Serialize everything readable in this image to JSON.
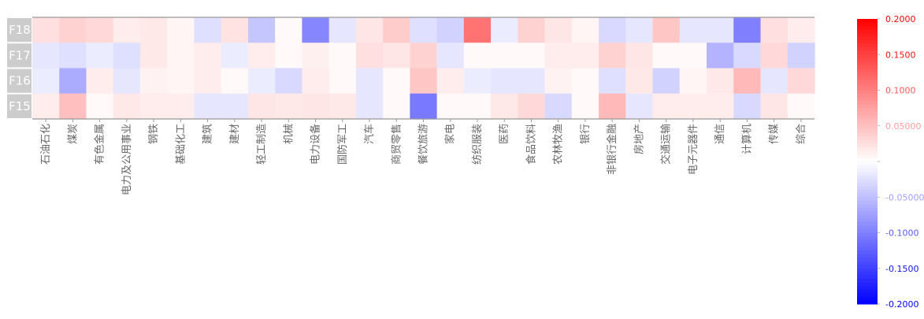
{
  "chart_data": {
    "type": "heatmap",
    "title": "",
    "rows": [
      "F18",
      "F17",
      "F16",
      "F15"
    ],
    "columns": [
      "石油石化",
      "煤炭",
      "有色金属",
      "电力及公用事业",
      "钢铁",
      "基础化工",
      "建筑",
      "建材",
      "轻工制造",
      "机械",
      "电力设备",
      "国防军工",
      "汽车",
      "商贸零售",
      "餐饮旅游",
      "家电",
      "纺织服装",
      "医药",
      "食品饮料",
      "农林牧渔",
      "银行",
      "非银行金融",
      "房地产",
      "交通运输",
      "电子元器件",
      "通信",
      "计算机",
      "传媒",
      "综合"
    ],
    "values": [
      [
        0.025,
        0.035,
        0.03,
        0.015,
        0.018,
        0.008,
        -0.025,
        0.022,
        -0.045,
        0.005,
        -0.095,
        -0.02,
        0.02,
        0.04,
        -0.025,
        -0.035,
        0.11,
        -0.015,
        0.035,
        0.02,
        0.008,
        -0.03,
        -0.02,
        0.045,
        -0.02,
        -0.02,
        -0.1,
        0.025,
        0.015
      ],
      [
        -0.02,
        -0.025,
        -0.015,
        -0.025,
        0.018,
        0.008,
        0.015,
        -0.015,
        0.015,
        0.005,
        0.012,
        0.005,
        0.025,
        0.02,
        0.035,
        -0.02,
        0.005,
        0.005,
        0.005,
        0.015,
        0.015,
        0.035,
        0.02,
        0.005,
        0.005,
        -0.06,
        -0.03,
        0.03,
        -0.035
      ],
      [
        -0.015,
        -0.065,
        0.015,
        -0.02,
        0.01,
        0.008,
        0.015,
        0.005,
        -0.015,
        -0.03,
        0.015,
        0.005,
        -0.02,
        0.005,
        0.045,
        0.015,
        -0.015,
        -0.02,
        -0.02,
        0.01,
        0.005,
        -0.025,
        0.018,
        -0.035,
        0.008,
        0.018,
        0.055,
        -0.02,
        0.03
      ],
      [
        0.015,
        0.05,
        0.005,
        0.018,
        0.015,
        0.015,
        -0.02,
        -0.02,
        0.02,
        0.018,
        0.02,
        0.018,
        -0.02,
        0.005,
        -0.105,
        0.005,
        0.005,
        0.018,
        0.03,
        -0.03,
        0.005,
        0.055,
        -0.02,
        0.015,
        0.015,
        0.015,
        -0.03,
        0.02,
        0.005
      ]
    ],
    "colorbar": {
      "min": -0.2,
      "max": 0.2,
      "ticks": [
        "-0.2000",
        "-0.1500",
        "-0.1000",
        "-0.05000",
        "",
        "0.05000",
        "0.1000",
        "0.1500",
        "0.2000"
      ],
      "tick_values": [
        -0.2,
        -0.15,
        -0.1,
        -0.05,
        0,
        0.05,
        0.1,
        0.15,
        0.2
      ],
      "low_color": "#0000ff",
      "mid_color": "#ffffff",
      "high_color": "#ff0000"
    },
    "xlabel": "",
    "ylabel": "",
    "grid": false
  },
  "colors": {
    "row_label_bg": "#cccccc",
    "axis_line": "#999999",
    "label_text": "#666666"
  }
}
